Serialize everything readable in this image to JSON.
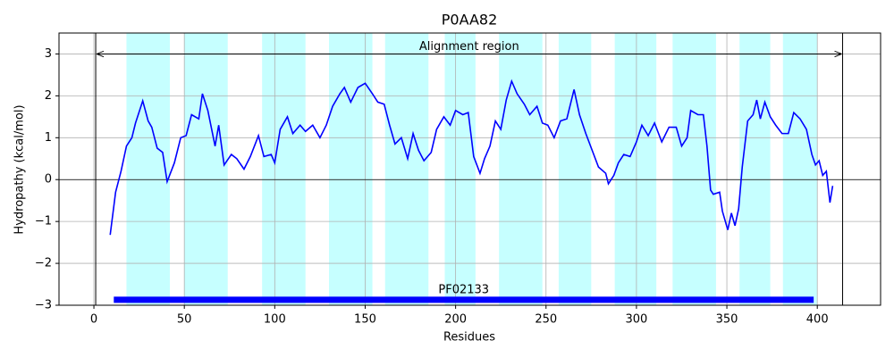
{
  "chart_data": {
    "type": "line",
    "title": "P0AA82",
    "x_label": "Residues",
    "y_label": "Hydropathy (kcal/mol)",
    "xlim": [
      -19.3,
      435
    ],
    "ylim": [
      -3,
      3.5
    ],
    "xticks": [
      0,
      50,
      100,
      150,
      200,
      250,
      300,
      350,
      400
    ],
    "yticks": [
      {
        "value": -3,
        "label": "−3"
      },
      {
        "value": -2,
        "label": "−2"
      },
      {
        "value": -1,
        "label": "−1"
      },
      0,
      1,
      2,
      3
    ],
    "grid": true,
    "hline": 0,
    "region_color": "#c6ffff",
    "regions": [
      [
        18,
        42
      ],
      [
        50,
        74
      ],
      [
        93,
        117
      ],
      [
        130,
        154
      ],
      [
        161,
        185
      ],
      [
        194,
        211
      ],
      [
        224,
        248
      ],
      [
        257,
        275
      ],
      [
        288,
        311
      ],
      [
        320,
        344
      ],
      [
        357,
        374
      ],
      [
        381,
        400
      ]
    ],
    "alignment": {
      "label": "Alignment region",
      "start": 1,
      "end": 414,
      "y": 3
    },
    "domain": {
      "label": "PF02133",
      "start": 11,
      "end": 398,
      "y": -2.87,
      "color": "#0000ff"
    },
    "x": [
      9,
      12,
      15,
      18,
      21,
      23,
      27,
      30,
      32,
      35,
      38,
      40.5,
      44.5,
      48,
      51,
      54,
      58,
      60,
      63,
      67,
      69,
      72,
      76,
      79,
      83,
      86.5,
      91,
      94,
      98,
      100,
      103,
      107,
      110,
      114,
      117,
      121,
      125,
      128.5,
      132,
      136,
      138.5,
      142,
      146,
      150,
      154,
      157,
      160.5,
      163.5,
      166.5,
      170,
      173.5,
      176.5,
      179.5,
      182.5,
      186.5,
      189.5,
      193.5,
      197,
      200,
      204,
      207,
      210,
      213.5,
      216,
      219,
      222,
      225,
      228,
      231,
      234,
      238,
      241,
      245,
      248,
      251,
      254.5,
      258,
      261.5,
      265.5,
      268.5,
      272,
      275.5,
      279,
      283,
      284.5,
      287.5,
      290,
      293,
      296.5,
      300,
      303,
      306.5,
      310,
      314,
      318,
      322,
      325,
      328,
      330,
      334,
      337,
      339,
      341,
      342.5,
      346,
      347.5,
      350.5,
      352.5,
      354.5,
      356.5,
      358.5,
      361.5,
      364.5,
      366.5,
      368.5,
      371,
      374,
      377,
      380.5,
      384,
      387,
      390.5,
      394,
      397,
      399,
      401,
      403,
      405,
      407,
      408.5
    ],
    "series": [
      {
        "color": "#0000ff",
        "values": [
          -1.32,
          -0.3,
          0.2,
          0.8,
          1.0,
          1.35,
          1.88,
          1.4,
          1.25,
          0.75,
          0.65,
          -0.05,
          0.4,
          1.0,
          1.05,
          1.55,
          1.45,
          2.05,
          1.65,
          0.8,
          1.3,
          0.35,
          0.6,
          0.5,
          0.25,
          0.55,
          1.05,
          0.55,
          0.6,
          0.4,
          1.2,
          1.5,
          1.1,
          1.3,
          1.15,
          1.3,
          1.0,
          1.3,
          1.75,
          2.05,
          2.2,
          1.85,
          2.2,
          2.3,
          2.05,
          1.85,
          1.8,
          1.3,
          0.85,
          1.0,
          0.5,
          1.1,
          0.7,
          0.45,
          0.65,
          1.2,
          1.5,
          1.3,
          1.65,
          1.55,
          1.6,
          0.55,
          0.15,
          0.5,
          0.8,
          1.4,
          1.2,
          1.9,
          2.35,
          2.05,
          1.8,
          1.55,
          1.75,
          1.35,
          1.3,
          1.0,
          1.4,
          1.45,
          2.15,
          1.55,
          1.1,
          0.7,
          0.3,
          0.15,
          -0.1,
          0.1,
          0.4,
          0.6,
          0.55,
          0.9,
          1.3,
          1.05,
          1.35,
          0.9,
          1.25,
          1.25,
          0.8,
          1.0,
          1.65,
          1.55,
          1.55,
          0.8,
          -0.25,
          -0.35,
          -0.3,
          -0.75,
          -1.2,
          -0.8,
          -1.1,
          -0.7,
          0.3,
          1.4,
          1.55,
          1.9,
          1.45,
          1.85,
          1.5,
          1.3,
          1.1,
          1.1,
          1.6,
          1.45,
          1.2,
          0.6,
          0.35,
          0.45,
          0.1,
          0.2,
          -0.55,
          -0.15
        ]
      }
    ]
  }
}
